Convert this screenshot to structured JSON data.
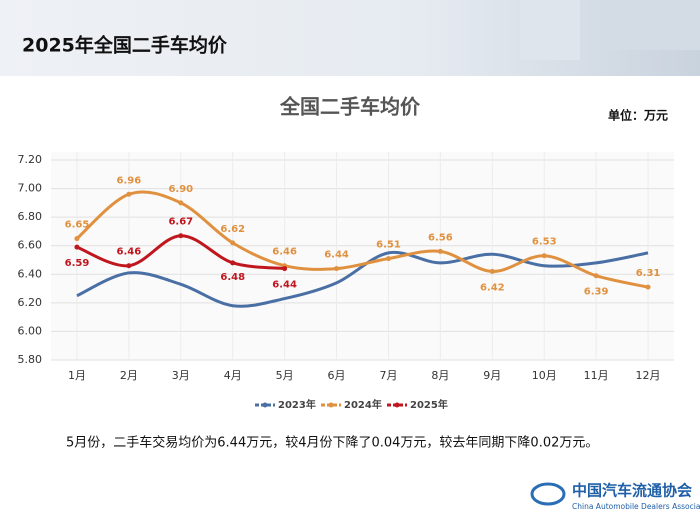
{
  "header": {
    "title": "2025年全国二手车均价"
  },
  "chart_data": {
    "type": "line",
    "title": "全国二手车均价",
    "unit_label": "单位：万元",
    "categories": [
      "1月",
      "2月",
      "3月",
      "4月",
      "5月",
      "6月",
      "7月",
      "8月",
      "9月",
      "10月",
      "11月",
      "12月"
    ],
    "series": [
      {
        "name": "2023年",
        "color": "#4a6fa5",
        "values": [
          6.25,
          6.41,
          6.33,
          6.18,
          6.23,
          6.34,
          6.55,
          6.48,
          6.54,
          6.46,
          6.48,
          6.55
        ]
      },
      {
        "name": "2024年",
        "color": "#e0913f",
        "values": [
          6.65,
          6.96,
          6.9,
          6.62,
          6.46,
          6.44,
          6.51,
          6.56,
          6.42,
          6.53,
          6.39,
          6.31
        ],
        "value_labels": [
          "6.65",
          "6.96",
          "6.90",
          "6.62",
          "6.46",
          "6.44",
          "6.51",
          "6.56",
          "6.42",
          "6.53",
          "6.39",
          "6.31"
        ]
      },
      {
        "name": "2025年",
        "color": "#c0161e",
        "values": [
          6.59,
          6.46,
          6.67,
          6.48,
          6.44,
          null,
          null,
          null,
          null,
          null,
          null,
          null
        ],
        "value_labels": [
          "6.59",
          "6.46",
          "6.67",
          "6.48",
          "6.44",
          null,
          null,
          null,
          null,
          null,
          null,
          null
        ]
      }
    ],
    "ylim": [
      5.8,
      7.2
    ],
    "yticks": [
      {
        "value": 5.8,
        "label": "5.80"
      },
      {
        "value": 6.0,
        "label": "6.00"
      },
      {
        "value": 6.2,
        "label": "6.20"
      },
      {
        "value": 6.4,
        "label": "6.40"
      },
      {
        "value": 6.6,
        "label": "6.60"
      },
      {
        "value": 6.8,
        "label": "6.80"
      },
      {
        "value": 7.0,
        "label": "7.00"
      },
      {
        "value": 7.2,
        "label": "7.20"
      }
    ],
    "grid": true,
    "smooth": true,
    "legend": "bottom"
  },
  "note": "5月份，二手车交易均价为6.44万元，较4月份下降了0.04万元，较去年同期下降0.02万元。",
  "logo": {
    "name": "中国汽车流通协会",
    "english": "China Automobile Dealers Association"
  }
}
